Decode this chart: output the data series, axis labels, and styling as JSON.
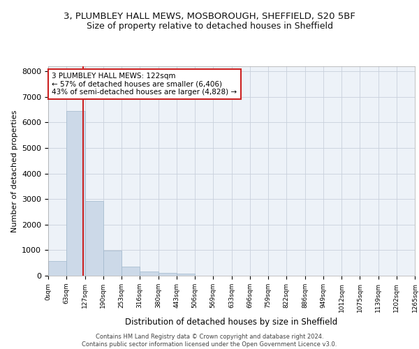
{
  "title_line1": "3, PLUMBLEY HALL MEWS, MOSBOROUGH, SHEFFIELD, S20 5BF",
  "title_line2": "Size of property relative to detached houses in Sheffield",
  "xlabel": "Distribution of detached houses by size in Sheffield",
  "ylabel": "Number of detached properties",
  "bar_values": [
    570,
    6440,
    2920,
    990,
    360,
    175,
    100,
    90,
    0,
    0,
    0,
    0,
    0,
    0,
    0,
    0,
    0,
    0,
    0,
    0
  ],
  "bar_labels": [
    "0sqm",
    "63sqm",
    "127sqm",
    "190sqm",
    "253sqm",
    "316sqm",
    "380sqm",
    "443sqm",
    "506sqm",
    "569sqm",
    "633sqm",
    "696sqm",
    "759sqm",
    "822sqm",
    "886sqm",
    "949sqm",
    "1012sqm",
    "1075sqm",
    "1139sqm",
    "1202sqm",
    "1265sqm"
  ],
  "bar_color": "#ccd9e8",
  "bar_edge_color": "#a0b8cc",
  "vline_color": "#cc2222",
  "annotation_text": "3 PLUMBLEY HALL MEWS: 122sqm\n← 57% of detached houses are smaller (6,406)\n43% of semi-detached houses are larger (4,828) →",
  "annotation_box_color": "#ffffff",
  "annotation_box_edge": "#cc2222",
  "ylim": [
    0,
    8200
  ],
  "yticks": [
    0,
    1000,
    2000,
    3000,
    4000,
    5000,
    6000,
    7000,
    8000
  ],
  "footer_line1": "Contains HM Land Registry data © Crown copyright and database right 2024.",
  "footer_line2": "Contains public sector information licensed under the Open Government Licence v3.0.",
  "bg_color": "#edf2f8",
  "grid_color": "#c8d0dc",
  "title_fontsize": 9.5,
  "subtitle_fontsize": 9
}
